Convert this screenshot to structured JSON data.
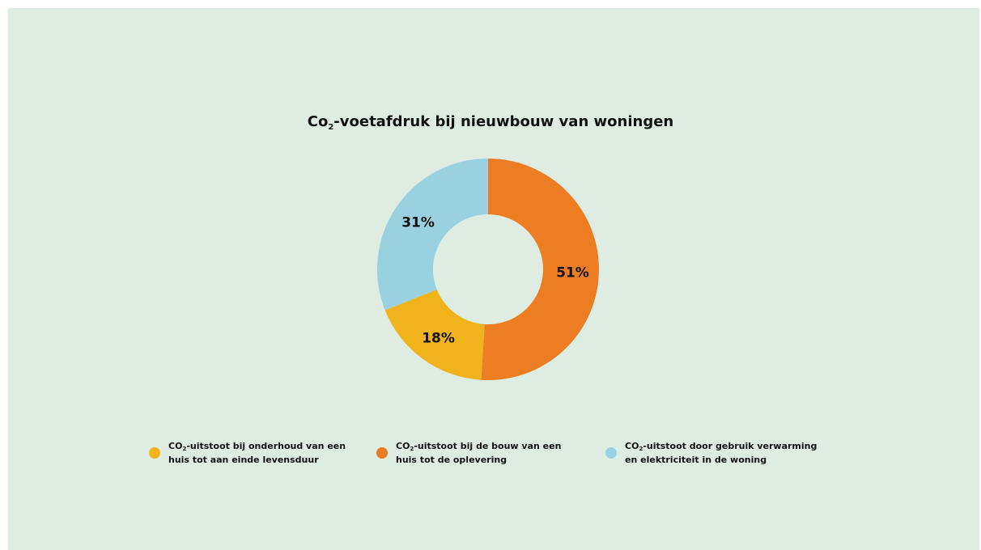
{
  "chart_data": {
    "type": "pie",
    "title_prefix": "Co",
    "title_sub": "2",
    "title_rest": "-voetafdruk bij nieuwbouw van woningen",
    "slices": [
      {
        "value": 51,
        "label": "51%",
        "color": "#ec7d23"
      },
      {
        "value": 18,
        "label": "18%",
        "color": "#f0b31c"
      },
      {
        "value": 31,
        "label": "31%",
        "color": "#9ad1e1"
      }
    ],
    "legend": [
      {
        "color": "#f0b31c",
        "sub": "2",
        "prefix": "CO",
        "line1": "-uitstoot bij onderhoud van een",
        "line2": "huis tot aan einde levensduur"
      },
      {
        "color": "#ec7d23",
        "sub": "2",
        "prefix": "CO",
        "line1": "-uitstoot bij de bouw van een",
        "line2": "huis tot de oplevering"
      },
      {
        "color": "#9ad1e1",
        "sub": "2",
        "prefix": "CO",
        "line1": "-uitstoot door gebruik verwarming",
        "line2": "en elektriciteit in de woning"
      }
    ],
    "legend_placement": "bottom",
    "hole": "donut"
  }
}
